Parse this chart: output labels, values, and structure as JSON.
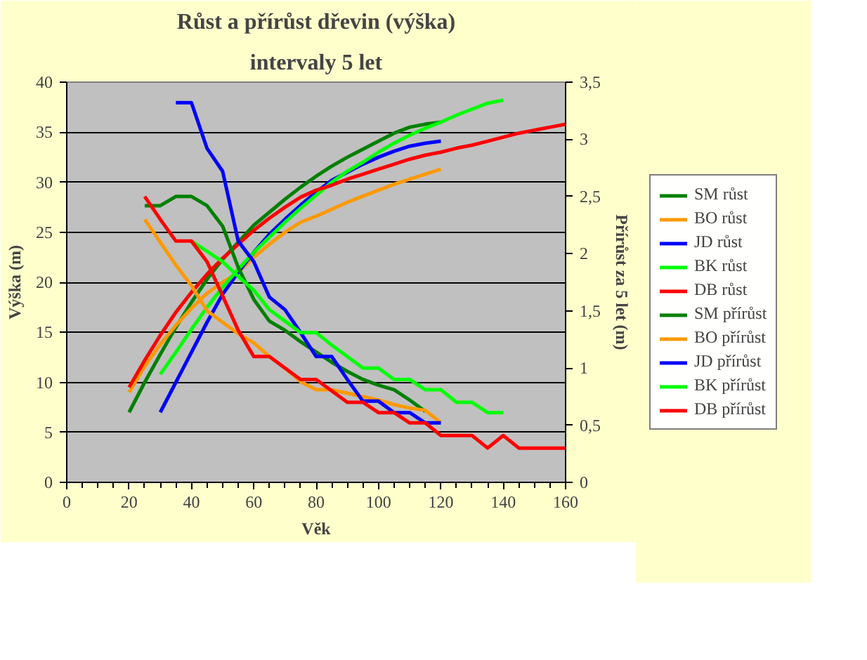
{
  "chart_data": {
    "type": "line",
    "title": "Růst a přírůst dřevin (výška)",
    "subtitle": "intervaly 5 let",
    "xlabel": "Věk",
    "ylabel": "Výška (m)",
    "y2label": "Přírůst za 5 let (m)",
    "xlim": [
      0,
      160
    ],
    "xticks": [
      0,
      20,
      40,
      60,
      80,
      100,
      120,
      140,
      160
    ],
    "ylim": [
      0,
      40
    ],
    "yticks": [
      0,
      5,
      10,
      15,
      20,
      25,
      30,
      35,
      40
    ],
    "y2lim": [
      0,
      3.5
    ],
    "y2ticks": [
      0,
      {
        "value": 0.5,
        "label": "0,5"
      },
      1,
      {
        "value": 1.5,
        "label": "1,5"
      },
      2,
      {
        "value": 2.5,
        "label": "2,5"
      },
      3,
      {
        "value": 3.5,
        "label": "3,5"
      }
    ],
    "grid": "y",
    "legend": "right",
    "series": [
      {
        "name": "SM růst",
        "color": "#008000",
        "x": [
          20,
          25,
          30,
          35,
          40,
          45,
          50,
          55,
          60,
          65,
          70,
          75,
          80,
          85,
          90,
          95,
          100,
          105,
          110,
          115,
          120
        ],
        "values": [
          7,
          10,
          12.8,
          15.5,
          18,
          20.3,
          22.3,
          24,
          25.7,
          27,
          28.3,
          29.5,
          30.6,
          31.6,
          32.5,
          33.3,
          34.1,
          34.9,
          35.5,
          35.8,
          36
        ]
      },
      {
        "name": "BO růst",
        "color": "#ff9900",
        "x": [
          20,
          25,
          30,
          35,
          40,
          45,
          50,
          55,
          60,
          65,
          70,
          75,
          80,
          85,
          90,
          95,
          100,
          105,
          110,
          115,
          120
        ],
        "values": [
          9,
          11.6,
          13.8,
          15.7,
          17.4,
          18.9,
          20,
          21,
          22.5,
          23.8,
          25,
          26,
          26.6,
          27.3,
          28,
          28.6,
          29.2,
          29.8,
          30.3,
          30.8,
          31.3
        ]
      },
      {
        "name": "JD růst",
        "color": "#0000ff",
        "x": [
          30,
          35,
          40,
          45,
          50,
          55,
          60,
          65,
          70,
          75,
          80,
          85,
          90,
          95,
          100,
          105,
          110,
          115,
          120
        ],
        "values": [
          7,
          10,
          13,
          16,
          18.8,
          21,
          23,
          24.8,
          26.3,
          27.7,
          29,
          30.2,
          31,
          31.8,
          32.5,
          33.1,
          33.6,
          33.9,
          34.1
        ]
      },
      {
        "name": "BK růst",
        "color": "#00ff00",
        "x": [
          30,
          35,
          40,
          45,
          50,
          55,
          60,
          65,
          70,
          75,
          80,
          85,
          90,
          95,
          100,
          105,
          110,
          115,
          120,
          125,
          130,
          135,
          140
        ],
        "values": [
          10.8,
          13,
          15.3,
          17.5,
          19.5,
          21.3,
          23,
          24.5,
          26,
          27.4,
          28.7,
          30,
          31.1,
          32,
          33,
          33.9,
          34.7,
          35.4,
          36,
          36.7,
          37.3,
          37.9,
          38.2
        ]
      },
      {
        "name": "DB růst",
        "color": "#ff0000",
        "x": [
          20,
          25,
          30,
          35,
          40,
          45,
          50,
          55,
          60,
          65,
          70,
          75,
          80,
          85,
          90,
          95,
          100,
          105,
          110,
          115,
          120,
          125,
          130,
          135,
          140,
          145,
          150,
          155,
          160
        ],
        "values": [
          9.5,
          12.2,
          14.7,
          17,
          19,
          20.8,
          22.4,
          23.8,
          25.2,
          26.4,
          27.5,
          28.5,
          29.2,
          29.7,
          30.3,
          30.8,
          31.3,
          31.8,
          32.3,
          32.7,
          33,
          33.4,
          33.7,
          34.1,
          34.5,
          34.9,
          35.2,
          35.5,
          35.8
        ]
      },
      {
        "name": "SM přírůst",
        "color": "#008000",
        "axis": "y2",
        "x": [
          25,
          30,
          35,
          40,
          45,
          50,
          55,
          60,
          65,
          70,
          75,
          80,
          85,
          90,
          95,
          100,
          105,
          110,
          115
        ],
        "values": [
          2.42,
          2.42,
          2.5,
          2.5,
          2.42,
          2.24,
          1.88,
          1.6,
          1.41,
          1.33,
          1.23,
          1.14,
          1.05,
          0.97,
          0.9,
          0.85,
          0.81,
          0.72,
          0.62
        ]
      },
      {
        "name": "BO přírůst",
        "color": "#ff9900",
        "axis": "y2",
        "x": [
          25,
          30,
          35,
          40,
          45,
          50,
          55,
          60,
          65,
          70,
          75,
          80,
          85,
          90,
          95,
          100,
          105,
          110,
          115,
          120
        ],
        "values": [
          2.3,
          2.1,
          1.9,
          1.72,
          1.5,
          1.4,
          1.3,
          1.22,
          1.1,
          1.0,
          0.88,
          0.81,
          0.81,
          0.78,
          0.75,
          0.72,
          0.68,
          0.65,
          0.63,
          0.52
        ]
      },
      {
        "name": "JD přírůst",
        "color": "#0000ff",
        "axis": "y2",
        "x": [
          35,
          40,
          45,
          50,
          55,
          60,
          65,
          70,
          75,
          80,
          85,
          90,
          95,
          100,
          105,
          110,
          115,
          120
        ],
        "values": [
          3.32,
          3.32,
          2.92,
          2.72,
          2.11,
          1.93,
          1.62,
          1.51,
          1.31,
          1.1,
          1.1,
          0.9,
          0.71,
          0.71,
          0.61,
          0.61,
          0.52,
          0.52
        ]
      },
      {
        "name": "BK přírůst",
        "color": "#00ff00",
        "axis": "y2",
        "x": [
          40,
          45,
          50,
          55,
          60,
          65,
          70,
          75,
          80,
          85,
          90,
          95,
          100,
          105,
          110,
          115,
          120,
          125,
          130,
          135,
          140
        ],
        "values": [
          2.11,
          2.02,
          1.93,
          1.8,
          1.68,
          1.51,
          1.41,
          1.31,
          1.31,
          1.2,
          1.1,
          1.0,
          1.0,
          0.9,
          0.9,
          0.81,
          0.81,
          0.7,
          0.7,
          0.61,
          0.61
        ]
      },
      {
        "name": "DB přírůst",
        "color": "#ff0000",
        "axis": "y2",
        "x": [
          25,
          30,
          35,
          40,
          45,
          50,
          55,
          60,
          65,
          70,
          75,
          80,
          85,
          90,
          95,
          100,
          105,
          110,
          115,
          120,
          125,
          130,
          135,
          140,
          145,
          150,
          155,
          160
        ],
        "values": [
          2.5,
          2.3,
          2.11,
          2.11,
          1.93,
          1.63,
          1.33,
          1.1,
          1.1,
          1.0,
          0.9,
          0.9,
          0.8,
          0.7,
          0.7,
          0.61,
          0.61,
          0.52,
          0.52,
          0.41,
          0.41,
          0.41,
          0.3,
          0.41,
          0.3,
          0.3,
          0.3,
          0.3
        ]
      }
    ]
  }
}
